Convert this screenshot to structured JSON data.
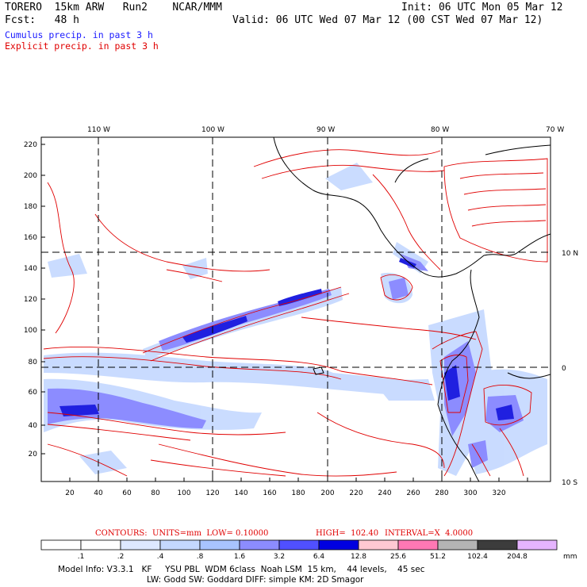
{
  "header": {
    "model": "TORERO  15km ARW   Run2    NCAR/MMM",
    "init": "Init: 06 UTC Mon 05 Mar 12",
    "fcst": "Fcst:   48 h",
    "valid": "Valid: 06 UTC Wed 07 Mar 12 (00 CST Wed 07 Mar 12)"
  },
  "legend": {
    "cumulus": "Cumulus precip. in past 3 h",
    "explicit": "Explicit precip. in past 3 h",
    "cumulus_color": "#1a1aff",
    "explicit_color": "#e00000"
  },
  "map": {
    "lon_labels": [
      "110 W",
      "100 W",
      "90 W",
      "80 W",
      "70 W"
    ],
    "lat_labels": [
      "10 N",
      "0",
      "10 S"
    ],
    "y_ticks": [
      "20",
      "40",
      "60",
      "80",
      "100",
      "120",
      "140",
      "160",
      "180",
      "200",
      "220"
    ],
    "x_ticks": [
      "20",
      "40",
      "60",
      "80",
      "100",
      "120",
      "140",
      "160",
      "180",
      "200",
      "220",
      "240",
      "260",
      "280",
      "300",
      "320"
    ]
  },
  "contours_info": {
    "units": "CONTOURS:  UNITS=mm  LOW= 0.10000",
    "high": "HIGH=  102.40",
    "interval": "INTERVAL=X  4.0000"
  },
  "colorbar": {
    "labels": [
      ".1",
      ".2",
      ".4",
      ".8",
      "1.6",
      "3.2",
      "6.4",
      "12.8",
      "25.6",
      "51.2",
      "102.4",
      "204.8"
    ],
    "unit": "mm",
    "colors": [
      "#ffffff",
      "#ffffff",
      "#dde8ff",
      "#c4d8ff",
      "#a8c4ff",
      "#8c8cff",
      "#5050ff",
      "#0000e0",
      "#ffc8d2",
      "#ff78b4",
      "#b4b4b4",
      "#3c3c3c",
      "#e6b4ff"
    ]
  },
  "footer": {
    "line1": "Model Info: V3.3.1   KF     YSU PBL  WDM 6class  Noah LSM  15 km,    44 levels,    45 sec",
    "line2": "LW: Godd SW: Goddard DIFF: simple KM: 2D Smagor"
  }
}
